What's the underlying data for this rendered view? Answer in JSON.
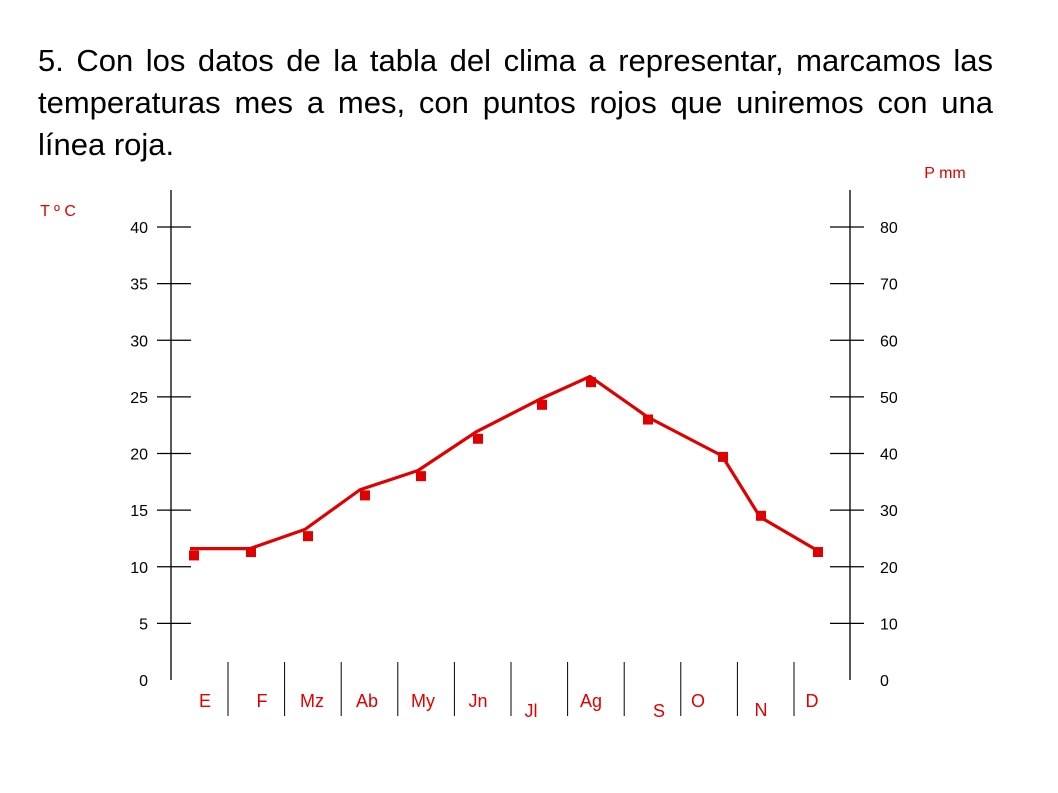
{
  "caption": "5. Con los datos de la tabla del clima a representar, marcamos las temperaturas mes a mes, con puntos rojos que uniremos con una línea roja.",
  "colors": {
    "series": "#e00000",
    "axis": "#000000",
    "labels": "#e00000"
  },
  "chart_data": {
    "type": "line",
    "title": "",
    "ylabel_left": "T º C",
    "ylabel_right": "P mm",
    "categories": [
      "E",
      "F",
      "Mz",
      "Ab",
      "My",
      "Jn",
      "Jl",
      "Ag",
      "S",
      "O",
      "N",
      "D"
    ],
    "left_axis": {
      "ylim": [
        0,
        40
      ],
      "ticks": [
        0,
        5,
        10,
        15,
        20,
        25,
        30,
        35,
        40
      ]
    },
    "right_axis": {
      "ylim": [
        0,
        80
      ],
      "ticks": [
        0,
        10,
        20,
        30,
        40,
        50,
        60,
        70,
        80
      ]
    },
    "grid": false,
    "series": [
      {
        "values": [
          11,
          11.3,
          12.7,
          16.3,
          18,
          21.3,
          24.3,
          26.3,
          23,
          19.7,
          14.5,
          11.3
        ]
      }
    ]
  }
}
